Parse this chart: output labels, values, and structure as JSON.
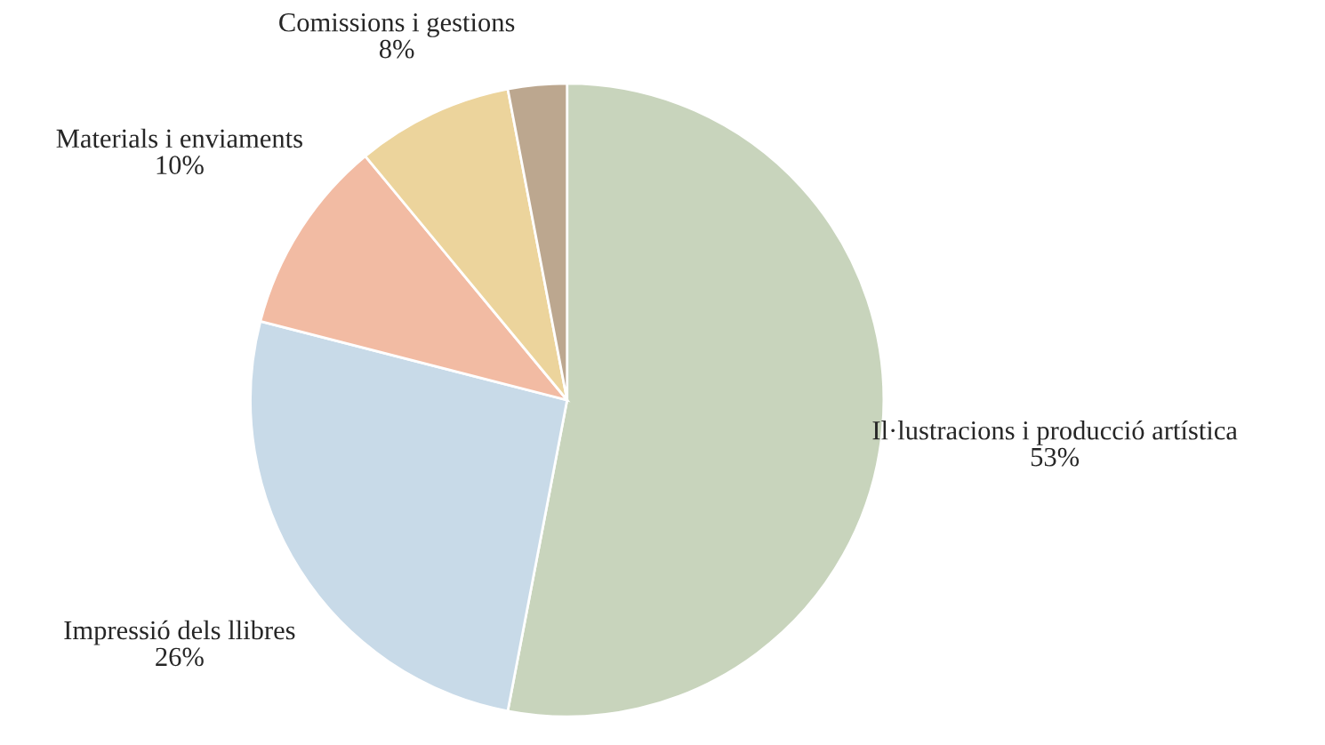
{
  "chart_data": {
    "type": "pie",
    "categories": [
      "Il·lustracions i producció artística",
      "Impressió dels llibres",
      "Materials i enviaments",
      "Comissions i gestions",
      null
    ],
    "values": [
      53,
      26,
      10,
      8,
      3
    ],
    "value_labels": [
      "53%",
      "26%",
      "10%",
      "8%",
      null
    ],
    "colors": [
      "#c8d4bc",
      "#c8dae8",
      "#f2bba3",
      "#ecd49c",
      "#bca78f"
    ],
    "legend": false
  }
}
